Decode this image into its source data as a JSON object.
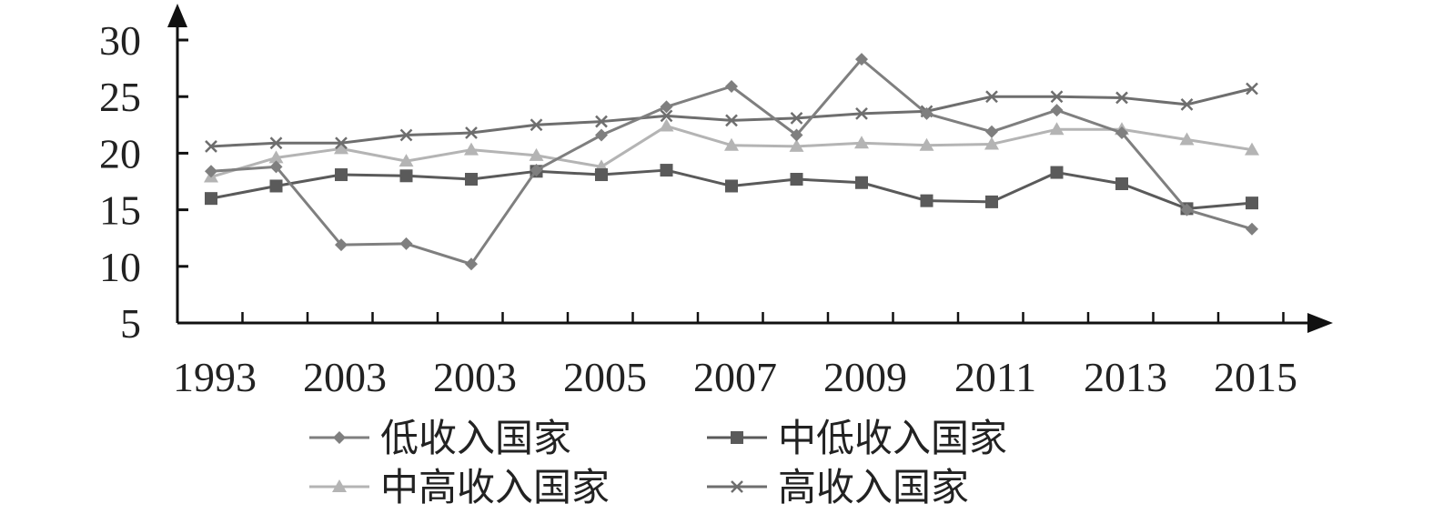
{
  "chart_data": {
    "type": "line",
    "title": "",
    "xlabel": "",
    "ylabel": "",
    "ylim": [
      5,
      30
    ],
    "yticks": [
      "5",
      "10",
      "15",
      "20",
      "25",
      "30"
    ],
    "xtick_labels": [
      "1993",
      "2003",
      "2003",
      "2005",
      "2007",
      "2009",
      "2011",
      "2013",
      "2015"
    ],
    "grid": false,
    "legend_position": "bottom",
    "series": [
      {
        "name": "低收入国家",
        "color": "#7f7f7f",
        "marker": "diamond",
        "values": [
          18.4,
          18.8,
          11.9,
          12.0,
          10.2,
          18.5,
          21.6,
          24.1,
          25.9,
          21.6,
          28.3,
          23.5,
          21.9,
          23.8,
          21.8,
          15.0,
          13.3
        ]
      },
      {
        "name": "中低收入国家",
        "color": "#5a5a5a",
        "marker": "square",
        "values": [
          16.0,
          17.1,
          18.1,
          18.0,
          17.7,
          18.4,
          18.1,
          18.5,
          17.1,
          17.7,
          17.4,
          15.8,
          15.7,
          18.3,
          17.3,
          15.1,
          15.6
        ]
      },
      {
        "name": "中高收入国家",
        "color": "#b4b4b4",
        "marker": "triangle",
        "values": [
          17.9,
          19.6,
          20.4,
          19.3,
          20.3,
          19.8,
          18.8,
          22.4,
          20.7,
          20.6,
          20.9,
          20.7,
          20.8,
          22.1,
          22.1,
          21.2,
          20.3
        ]
      },
      {
        "name": "高收入国家",
        "color": "#6e6e6e",
        "marker": "x",
        "values": [
          20.6,
          20.9,
          20.9,
          21.6,
          21.8,
          22.5,
          22.8,
          23.3,
          22.9,
          23.1,
          23.5,
          23.7,
          25.0,
          25.0,
          24.9,
          24.3,
          25.7
        ]
      }
    ]
  }
}
